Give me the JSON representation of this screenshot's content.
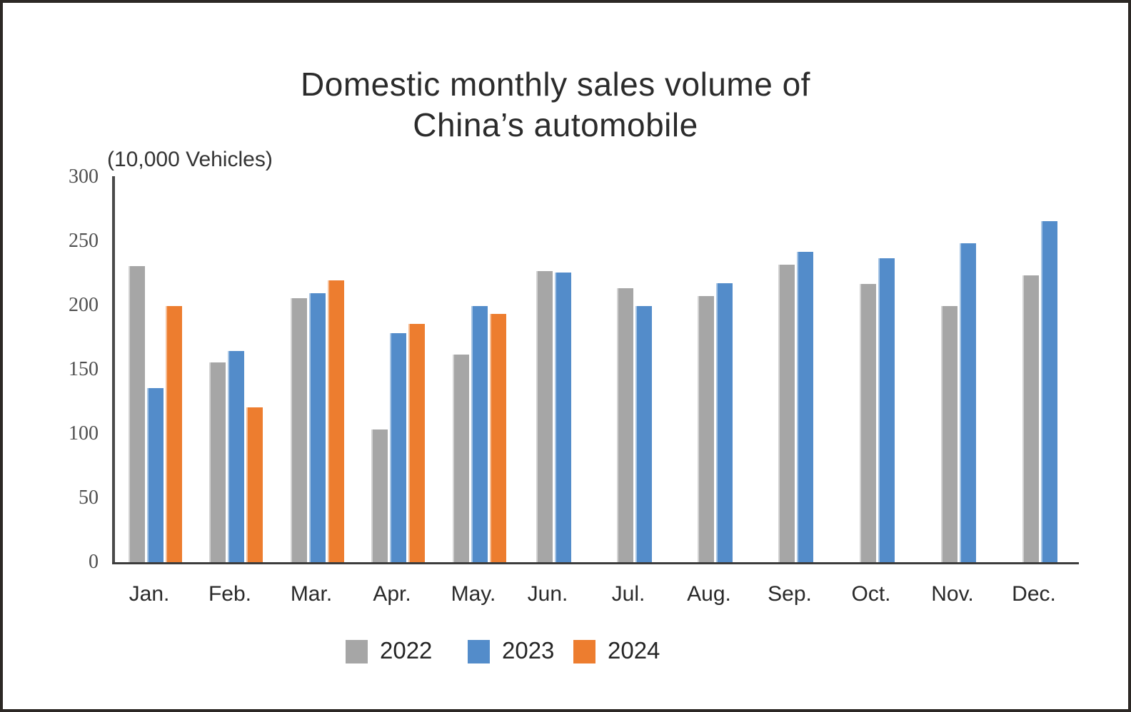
{
  "page": {
    "title_line1": "Domestic monthly sales volume of",
    "title_line2": "China’s automobile",
    "unit_label": "(10,000 Vehicles)"
  },
  "colors": {
    "series_2022": "#a6a6a6",
    "series_2023": "#538cca",
    "series_2024": "#ed7d2f",
    "axis_line": "#4a4a4a",
    "baseline": "#3c3c3c",
    "title_text": "#2b2b2b",
    "y_tick_text": "#4f4f4f",
    "x_label_text": "#2a2a2a",
    "legend_text": "#262626",
    "frame_border": "#2c2825"
  },
  "chart_data": {
    "type": "bar",
    "title": "Domestic monthly sales volume of China’s automobile",
    "subtitle": "",
    "xlabel": "",
    "ylabel": "(10,000 Vehicles)",
    "ylim": [
      0,
      300
    ],
    "yticks": [
      0,
      50,
      100,
      150,
      200,
      250,
      300
    ],
    "grid": false,
    "legend_position": "bottom",
    "categories": [
      "Jan.",
      "Feb.",
      "Mar.",
      "Apr.",
      "May.",
      "Jun.",
      "Jul.",
      "Aug.",
      "Sep.",
      "Oct.",
      "Nov.",
      "Dec."
    ],
    "series": [
      {
        "name": "2022",
        "color": "#a6a6a6",
        "values": [
          231,
          156,
          206,
          104,
          162,
          227,
          214,
          208,
          232,
          217,
          200,
          224
        ]
      },
      {
        "name": "2023",
        "color": "#538cca",
        "values": [
          136,
          165,
          210,
          179,
          200,
          226,
          200,
          218,
          242,
          237,
          249,
          266
        ]
      },
      {
        "name": "2024",
        "color": "#ed7d2f",
        "values": [
          200,
          121,
          220,
          186,
          194,
          null,
          null,
          null,
          null,
          null,
          null,
          null
        ]
      }
    ]
  }
}
